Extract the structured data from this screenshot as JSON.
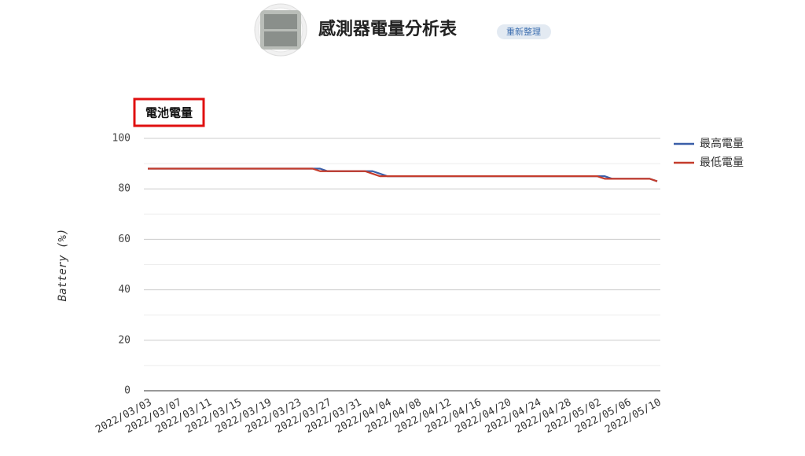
{
  "header": {
    "title": "感測器電量分析表",
    "button": "重新整理"
  },
  "chart_data": {
    "type": "line",
    "title": "電池電量",
    "y_label": "Battery (%)",
    "categories": [
      "2022/03/03",
      null,
      null,
      null,
      "2022/03/07",
      null,
      null,
      null,
      "2022/03/11",
      null,
      null,
      null,
      "2022/03/15",
      null,
      null,
      null,
      "2022/03/19",
      null,
      null,
      null,
      "2022/03/23",
      null,
      null,
      null,
      "2022/03/27",
      null,
      null,
      null,
      "2022/03/31",
      null,
      null,
      null,
      "2022/04/04",
      null,
      null,
      null,
      "2022/04/08",
      null,
      null,
      null,
      "2022/04/12",
      null,
      null,
      null,
      "2022/04/16",
      null,
      null,
      null,
      "2022/04/20",
      null,
      null,
      null,
      "2022/04/24",
      null,
      null,
      null,
      "2022/04/28",
      null,
      null,
      null,
      "2022/05/02",
      null,
      null,
      null,
      "2022/05/06",
      null,
      null,
      null,
      "2022/05/10"
    ],
    "series": [
      {
        "name": "最高電量",
        "color": "#3a5ea8",
        "values": [
          88,
          88,
          88,
          88,
          88,
          88,
          88,
          88,
          88,
          88,
          88,
          88,
          88,
          88,
          88,
          88,
          88,
          88,
          88,
          88,
          88,
          88,
          88,
          88,
          87,
          87,
          87,
          87,
          87,
          87,
          87,
          86,
          85,
          85,
          85,
          85,
          85,
          85,
          85,
          85,
          85,
          85,
          85,
          85,
          85,
          85,
          85,
          85,
          85,
          85,
          85,
          85,
          85,
          85,
          85,
          85,
          85,
          85,
          85,
          85,
          85,
          85,
          84,
          84,
          84,
          84,
          84,
          84,
          83
        ]
      },
      {
        "name": "最低電量",
        "color": "#c43c2c",
        "values": [
          88,
          88,
          88,
          88,
          88,
          88,
          88,
          88,
          88,
          88,
          88,
          88,
          88,
          88,
          88,
          88,
          88,
          88,
          88,
          88,
          88,
          88,
          88,
          87,
          87,
          87,
          87,
          87,
          87,
          87,
          86,
          85,
          85,
          85,
          85,
          85,
          85,
          85,
          85,
          85,
          85,
          85,
          85,
          85,
          85,
          85,
          85,
          85,
          85,
          85,
          85,
          85,
          85,
          85,
          85,
          85,
          85,
          85,
          85,
          85,
          85,
          84,
          84,
          84,
          84,
          84,
          84,
          84,
          83
        ]
      }
    ],
    "ylim": [
      0,
      100
    ],
    "yticks": [
      0,
      20,
      40,
      60,
      80,
      100
    ],
    "grid": true,
    "legend": "right"
  }
}
